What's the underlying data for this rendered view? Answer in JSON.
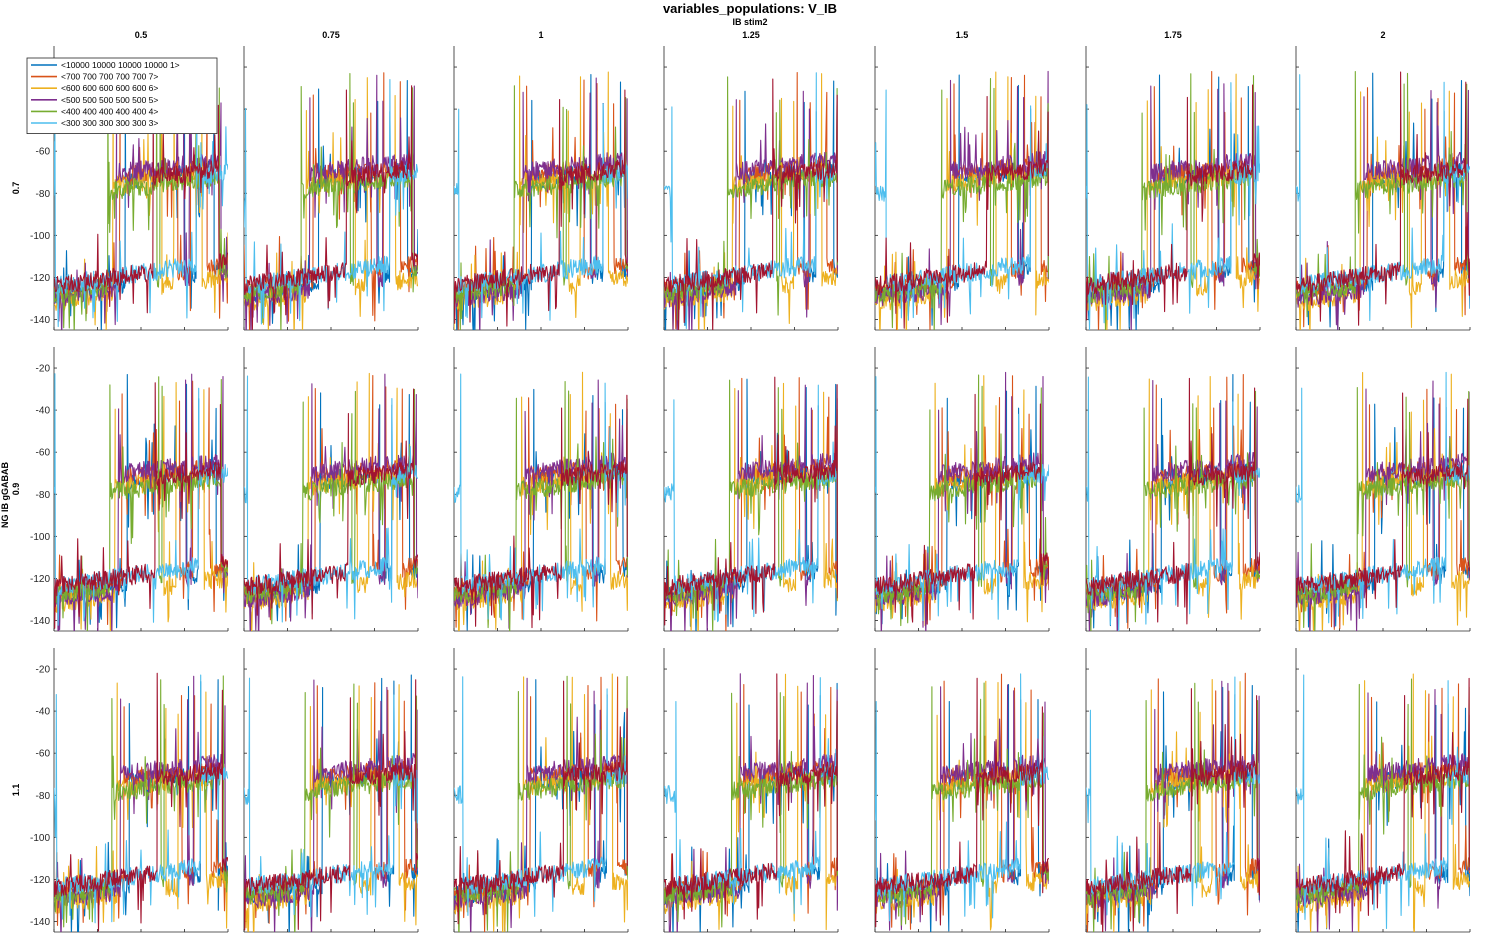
{
  "figure": {
    "title": "variables_populations: V_IB",
    "x_param_label": "IB stim2",
    "y_param_label": "NG IB gGABAB"
  },
  "chart_data": {
    "type": "line",
    "grid": "small-multiples",
    "columns": [
      "0.5",
      "0.75",
      "1",
      "1.25",
      "1.5",
      "1.75",
      "2"
    ],
    "rows": [
      "0.7",
      "0.9",
      "1.1"
    ],
    "xlim": [
      0,
      2000
    ],
    "ylim": [
      -145,
      -10
    ],
    "x_ticks": [
      0,
      500,
      1000,
      1500,
      2000
    ],
    "y_ticks": [
      -140,
      -120,
      -100,
      -80,
      -60,
      -40,
      -20
    ],
    "grid_lines": false,
    "legend_placement": "top-left",
    "series": [
      {
        "name": "<10000 10000 10000 10000 1>",
        "color": "#0072BD",
        "upper": -78,
        "lower": -128,
        "switch": [
          880,
          1560,
          1700,
          1900
        ]
      },
      {
        "name": "<700 700 700 700 700 7>",
        "color": "#D95319",
        "upper": -76,
        "lower": -126,
        "switch": [
          820,
          1480,
          1630,
          1820
        ]
      },
      {
        "name": "<600 600 600 600 600 6>",
        "color": "#EDB120",
        "upper": -80,
        "lower": -132,
        "switch": [
          740,
          1300,
          1440,
          1760
        ]
      },
      {
        "name": "<500 500 500 500 500 5>",
        "color": "#7E2F8E",
        "upper": -74,
        "lower": -130,
        "switch": [
          780,
          1620,
          1550,
          1980
        ]
      },
      {
        "name": "<400 400 400 400 400 4>",
        "color": "#77AC30",
        "upper": -82,
        "lower": -128,
        "switch": [
          680,
          1240,
          1280,
          1960
        ]
      },
      {
        "name": "<300 300 300 300 300 3>",
        "color": "#4DBEEE",
        "upper": -80,
        "lower": -124,
        "switch": [
          40,
          1700
        ]
      },
      {
        "name": "",
        "color": "#A2142F",
        "upper": -78,
        "lower": -124,
        "switch": [
          1200,
          1950
        ]
      }
    ]
  }
}
